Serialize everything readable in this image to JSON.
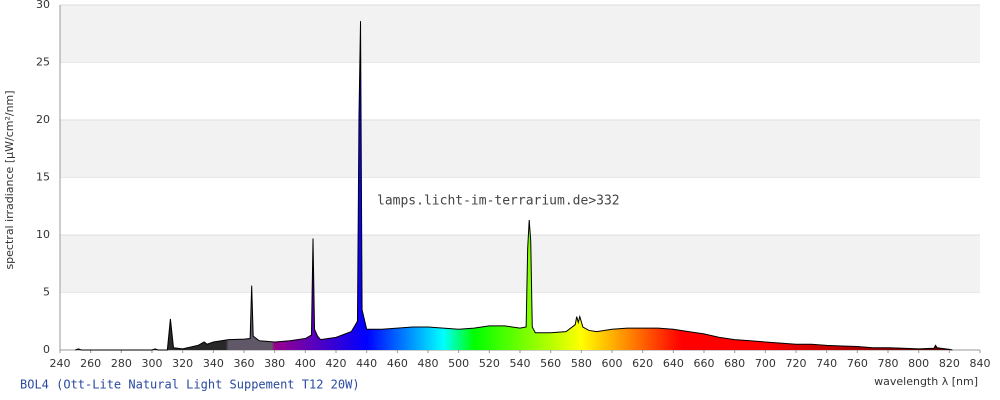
{
  "chart_data": {
    "type": "area",
    "title": "BOL4 (Ott-Lite Natural Light Suppement T12 20W)",
    "annotation": "lamps.licht-im-terrarium.de>332",
    "x_label": "wavelength λ [nm]",
    "y_label": "spectral irradiance [µW/cm²/nm]",
    "xlim": [
      240,
      840
    ],
    "ylim": [
      0,
      30
    ],
    "xticks": [
      240,
      260,
      280,
      300,
      320,
      340,
      360,
      380,
      400,
      420,
      440,
      460,
      480,
      500,
      520,
      540,
      560,
      580,
      600,
      620,
      640,
      660,
      680,
      700,
      720,
      740,
      760,
      780,
      800,
      820,
      840
    ],
    "yticks": [
      0,
      5,
      10,
      15,
      20,
      25,
      30
    ],
    "grid": true,
    "line_color": "#000000",
    "band_color": "#f2f2f2",
    "series": [
      {
        "name": "BOL4",
        "x": [
          250,
          252,
          254,
          300,
          302,
          304,
          310,
          312,
          314,
          320,
          330,
          334,
          336,
          340,
          350,
          360,
          364,
          365,
          366,
          370,
          380,
          390,
          400,
          404,
          405,
          406,
          408,
          410,
          420,
          430,
          434,
          435,
          436,
          437,
          440,
          450,
          460,
          470,
          480,
          490,
          500,
          510,
          520,
          530,
          540,
          544,
          545,
          546,
          547,
          548,
          550,
          560,
          570,
          576,
          577,
          578,
          579,
          581,
          585,
          590,
          600,
          610,
          620,
          630,
          640,
          650,
          660,
          670,
          680,
          690,
          700,
          710,
          720,
          730,
          740,
          750,
          760,
          770,
          780,
          790,
          800,
          810,
          811,
          812,
          820,
          822
        ],
        "values": [
          0,
          0.1,
          0,
          0,
          0.1,
          0,
          0,
          2.7,
          0.2,
          0.1,
          0.4,
          0.7,
          0.5,
          0.7,
          0.9,
          0.95,
          1.0,
          5.6,
          1.2,
          0.8,
          0.7,
          0.8,
          1.0,
          1.3,
          9.7,
          1.8,
          1.2,
          0.9,
          1.1,
          1.6,
          2.5,
          20.5,
          28.6,
          3.5,
          1.8,
          1.8,
          1.9,
          2.0,
          2.0,
          1.9,
          1.8,
          1.9,
          2.1,
          2.1,
          1.9,
          2.0,
          8.8,
          11.3,
          9.5,
          2.0,
          1.5,
          1.5,
          1.6,
          2.2,
          2.9,
          2.4,
          2.9,
          2.0,
          1.7,
          1.6,
          1.8,
          1.9,
          1.9,
          1.9,
          1.8,
          1.6,
          1.4,
          1.1,
          0.9,
          0.8,
          0.7,
          0.6,
          0.5,
          0.5,
          0.4,
          0.35,
          0.3,
          0.2,
          0.2,
          0.15,
          0.1,
          0.15,
          0.4,
          0.2,
          0.05,
          0
        ]
      }
    ]
  }
}
